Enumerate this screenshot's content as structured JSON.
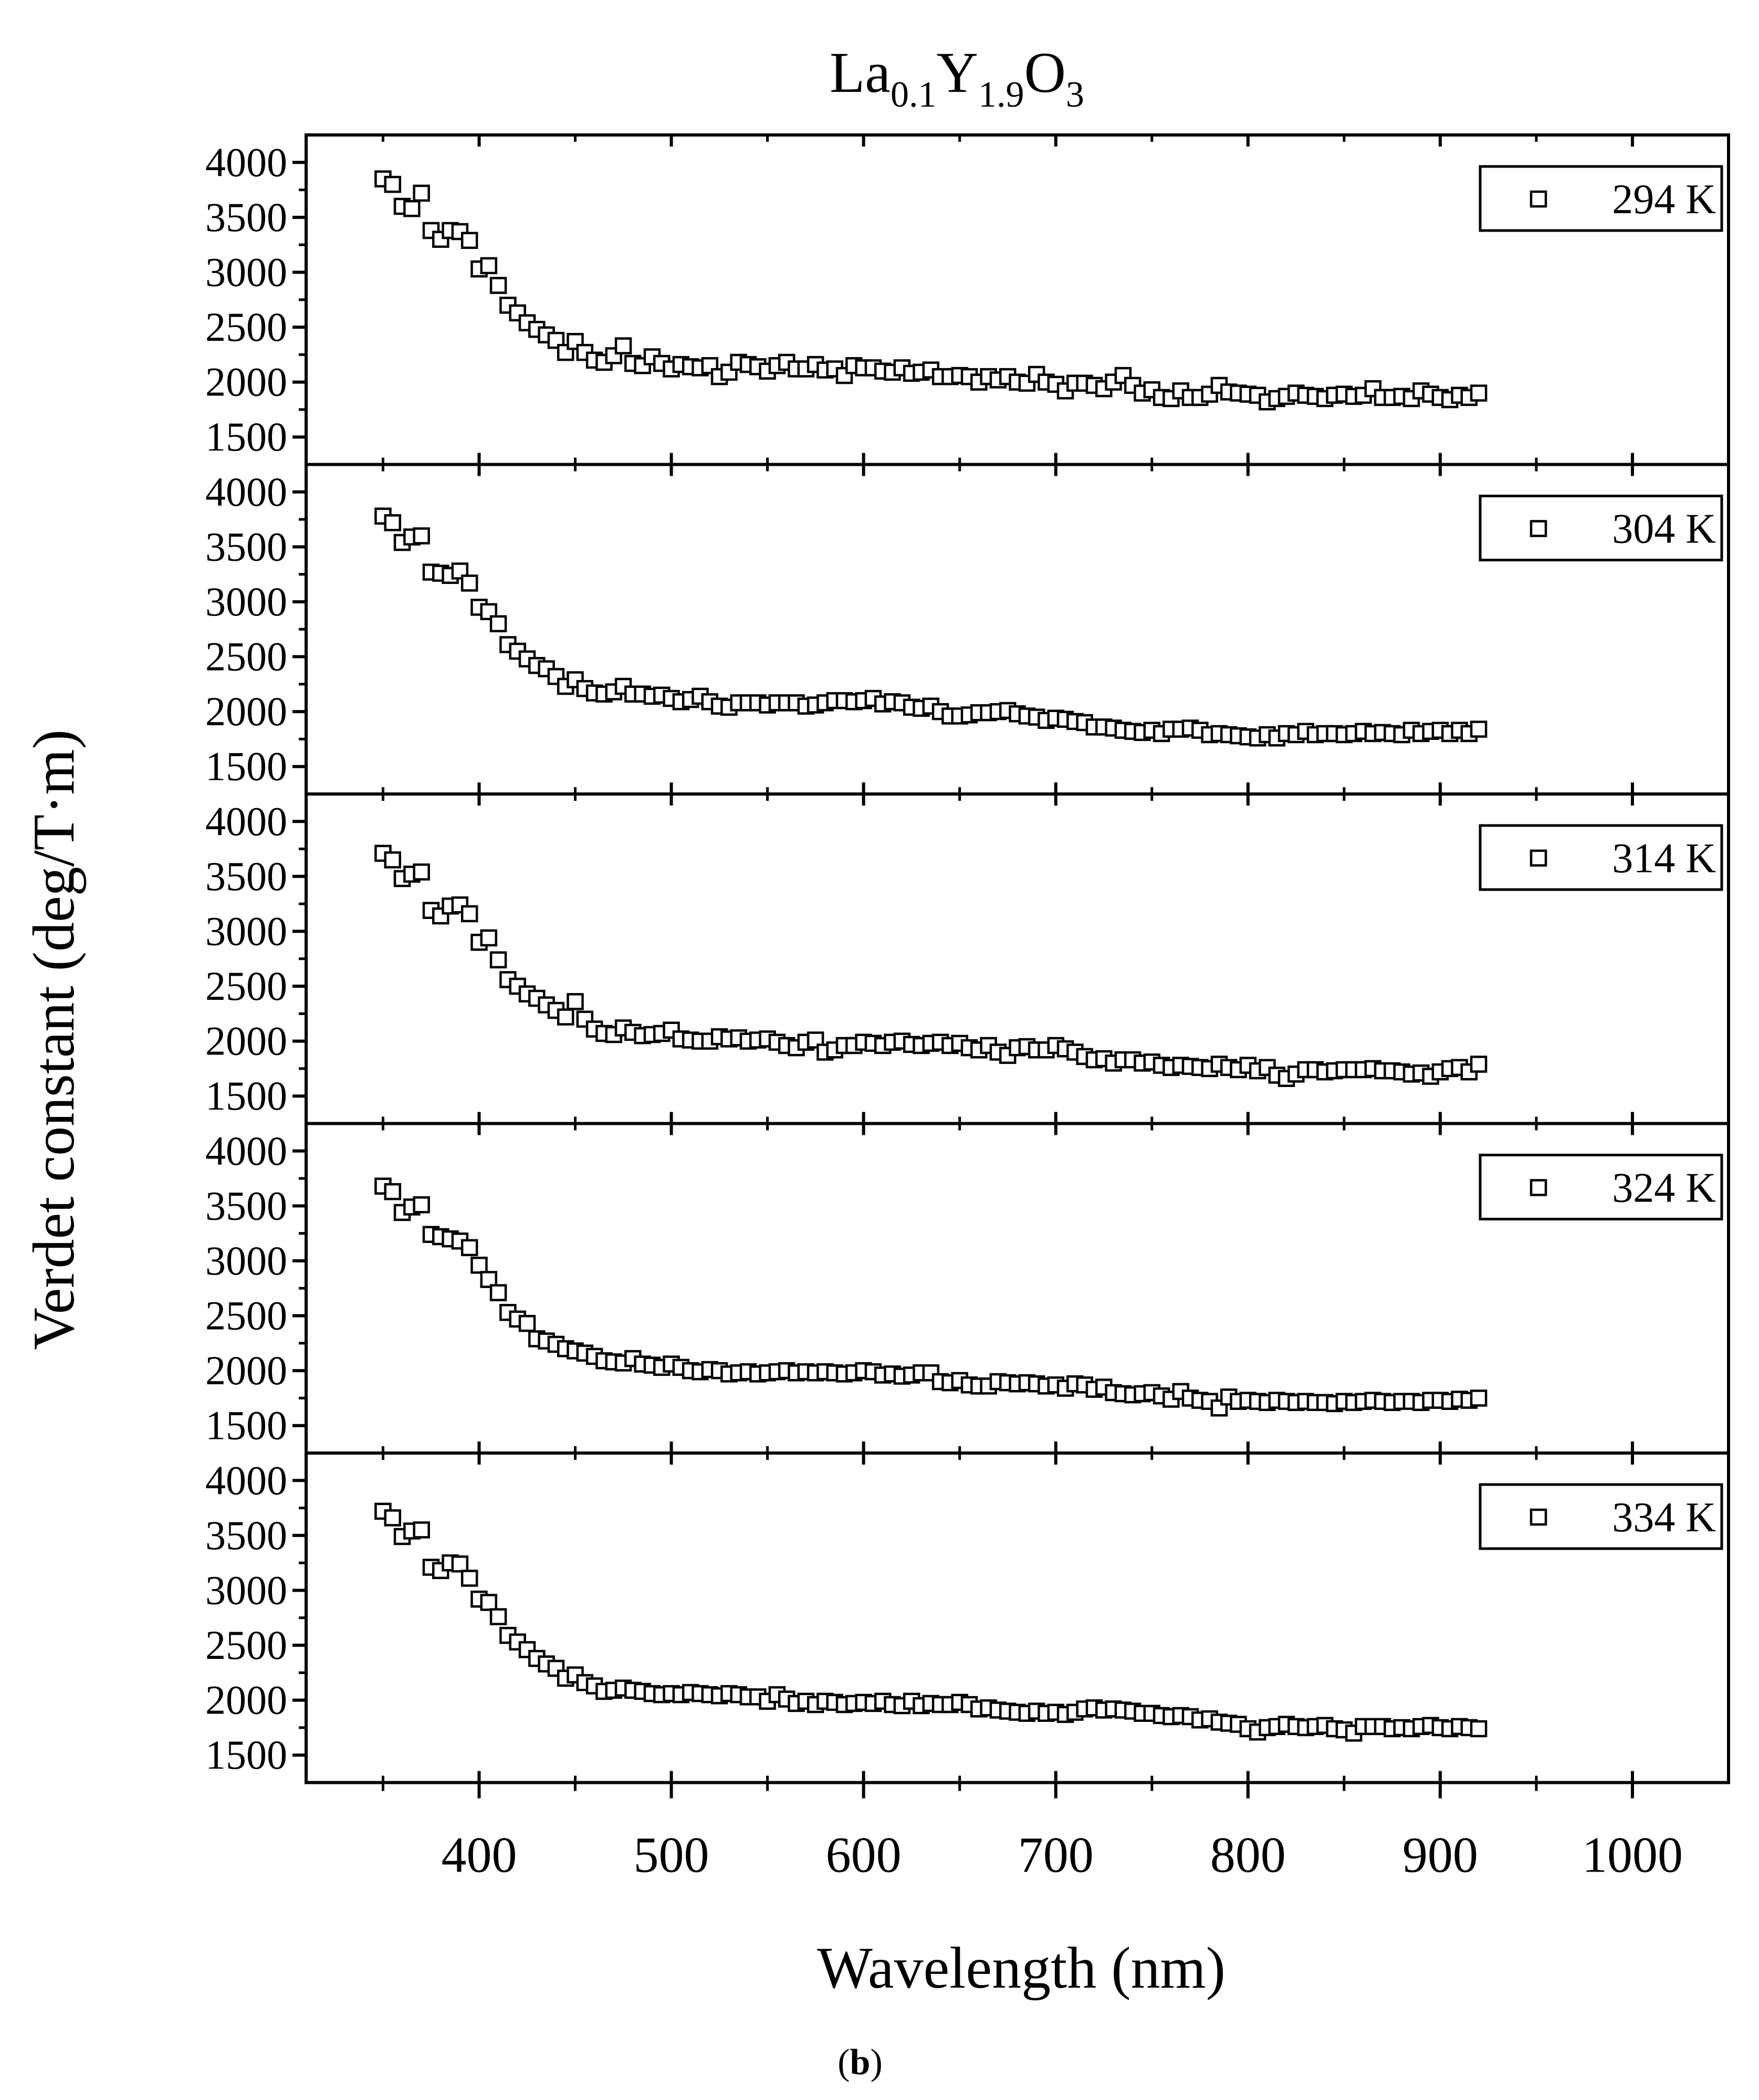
{
  "chart_data": {
    "type": "scatter",
    "title": {
      "main": "La",
      "sub1": "0.1",
      "mid": "Y",
      "sub2": "1.9",
      "tail": "O",
      "sub3": "3"
    },
    "title_text": "La0.1Y1.9O3",
    "xlabel": "Wavelength (nm)",
    "ylabel": "Verdet constant (deg/T·m)",
    "caption": {
      "open": "(",
      "letter": "b",
      "close": ")"
    },
    "xlim": [
      310,
      1050
    ],
    "ylim": [
      1250,
      4250
    ],
    "x_ticks": [
      400,
      500,
      600,
      700,
      800,
      900,
      1000
    ],
    "x_tick_labels": [
      "400",
      "500",
      "600",
      "700",
      "800",
      "900",
      "1000"
    ],
    "y_ticks": [
      1500,
      2000,
      2500,
      3000,
      3500,
      4000
    ],
    "y_tick_labels": [
      "1500",
      "2000",
      "2500",
      "3000",
      "3500",
      "4000"
    ],
    "marker": "open-square",
    "legend_position": "top-right",
    "x_start": 350,
    "x_step": 5,
    "series": [
      {
        "name": "294 K",
        "values": [
          3850,
          3800,
          3600,
          3580,
          3720,
          3380,
          3300,
          3380,
          3370,
          3290,
          3030,
          3060,
          2880,
          2700,
          2630,
          2540,
          2480,
          2430,
          2380,
          2270,
          2370,
          2270,
          2200,
          2180,
          2240,
          2330,
          2170,
          2150,
          2230,
          2170,
          2120,
          2160,
          2140,
          2130,
          2150,
          2050,
          2090,
          2180,
          2160,
          2140,
          2100,
          2150,
          2180,
          2120,
          2120,
          2160,
          2110,
          2120,
          2060,
          2150,
          2130,
          2130,
          2100,
          2090,
          2130,
          2080,
          2090,
          2110,
          2050,
          2050,
          2060,
          2050,
          2000,
          2050,
          2020,
          2050,
          2000,
          1990,
          2070,
          2000,
          1980,
          1920,
          1990,
          1990,
          1970,
          1940,
          2000,
          2060,
          1970,
          1900,
          1930,
          1860,
          1850,
          1920,
          1860,
          1860,
          1890,
          1970,
          1910,
          1900,
          1890,
          1880,
          1820,
          1850,
          1870,
          1900,
          1880,
          1870,
          1850,
          1880,
          1890,
          1870,
          1880,
          1940,
          1860,
          1860,
          1870,
          1850,
          1920,
          1890,
          1860,
          1840,
          1880,
          1860,
          1900
        ]
      },
      {
        "name": "304 K",
        "values": [
          3780,
          3720,
          3540,
          3590,
          3600,
          3270,
          3260,
          3240,
          3280,
          3170,
          2950,
          2910,
          2800,
          2610,
          2550,
          2480,
          2420,
          2390,
          2320,
          2230,
          2290,
          2210,
          2170,
          2160,
          2180,
          2230,
          2160,
          2160,
          2140,
          2150,
          2120,
          2090,
          2110,
          2140,
          2090,
          2050,
          2040,
          2080,
          2080,
          2080,
          2060,
          2080,
          2080,
          2080,
          2050,
          2060,
          2080,
          2100,
          2100,
          2090,
          2100,
          2120,
          2070,
          2090,
          2080,
          2040,
          2030,
          2050,
          2000,
          1960,
          1960,
          1970,
          1990,
          1990,
          2000,
          2010,
          1980,
          1960,
          1950,
          1920,
          1940,
          1930,
          1910,
          1900,
          1860,
          1860,
          1850,
          1830,
          1820,
          1810,
          1830,
          1800,
          1840,
          1840,
          1850,
          1830,
          1790,
          1800,
          1790,
          1780,
          1770,
          1760,
          1790,
          1760,
          1800,
          1790,
          1820,
          1790,
          1800,
          1800,
          1790,
          1800,
          1820,
          1800,
          1810,
          1800,
          1790,
          1830,
          1800,
          1820,
          1830,
          1800,
          1830,
          1800,
          1840
        ]
      },
      {
        "name": "314 K",
        "values": [
          3710,
          3650,
          3480,
          3520,
          3540,
          3190,
          3140,
          3230,
          3240,
          3160,
          2900,
          2940,
          2740,
          2560,
          2500,
          2430,
          2390,
          2330,
          2280,
          2220,
          2360,
          2200,
          2110,
          2070,
          2060,
          2120,
          2080,
          2050,
          2060,
          2070,
          2100,
          2020,
          2010,
          2000,
          2000,
          2040,
          2020,
          2030,
          2000,
          2010,
          2020,
          1990,
          1960,
          1940,
          1990,
          2010,
          1900,
          1920,
          1960,
          1960,
          1990,
          1980,
          1960,
          1990,
          2000,
          1970,
          1960,
          1980,
          1990,
          1960,
          1980,
          1940,
          1920,
          1960,
          1900,
          1870,
          1940,
          1950,
          1920,
          1920,
          1960,
          1930,
          1900,
          1860,
          1830,
          1840,
          1800,
          1830,
          1830,
          1800,
          1810,
          1780,
          1760,
          1780,
          1770,
          1760,
          1750,
          1790,
          1760,
          1740,
          1780,
          1730,
          1760,
          1690,
          1660,
          1700,
          1740,
          1740,
          1720,
          1730,
          1740,
          1740,
          1740,
          1750,
          1730,
          1730,
          1720,
          1700,
          1710,
          1680,
          1720,
          1750,
          1760,
          1720,
          1790
        ]
      },
      {
        "name": "324 K",
        "values": [
          3680,
          3630,
          3440,
          3490,
          3510,
          3240,
          3220,
          3200,
          3180,
          3120,
          2960,
          2830,
          2710,
          2530,
          2470,
          2430,
          2290,
          2270,
          2240,
          2200,
          2180,
          2160,
          2130,
          2090,
          2080,
          2070,
          2110,
          2060,
          2050,
          2030,
          2060,
          2030,
          2000,
          1990,
          2010,
          2000,
          1970,
          1980,
          1990,
          1970,
          1980,
          1990,
          2000,
          1980,
          1990,
          1980,
          1990,
          1980,
          1970,
          1980,
          2000,
          1990,
          1960,
          1970,
          1950,
          1960,
          1980,
          1980,
          1900,
          1890,
          1910,
          1870,
          1860,
          1860,
          1900,
          1890,
          1880,
          1890,
          1880,
          1860,
          1870,
          1840,
          1880,
          1870,
          1830,
          1850,
          1800,
          1790,
          1780,
          1790,
          1800,
          1770,
          1740,
          1810,
          1750,
          1730,
          1720,
          1660,
          1760,
          1720,
          1730,
          1720,
          1710,
          1730,
          1720,
          1710,
          1720,
          1710,
          1710,
          1700,
          1720,
          1710,
          1720,
          1730,
          1720,
          1710,
          1720,
          1720,
          1710,
          1730,
          1730,
          1720,
          1740,
          1730,
          1750
        ]
      },
      {
        "name": "334 K",
        "values": [
          3720,
          3660,
          3490,
          3540,
          3550,
          3210,
          3180,
          3250,
          3240,
          3110,
          2920,
          2890,
          2760,
          2590,
          2530,
          2460,
          2380,
          2330,
          2290,
          2200,
          2230,
          2160,
          2130,
          2080,
          2090,
          2110,
          2090,
          2080,
          2060,
          2050,
          2060,
          2050,
          2070,
          2060,
          2050,
          2040,
          2060,
          2050,
          2030,
          2030,
          1990,
          2050,
          2010,
          1970,
          1990,
          1960,
          1990,
          1980,
          1960,
          1970,
          1980,
          1970,
          1990,
          1960,
          1950,
          1990,
          1950,
          1970,
          1960,
          1960,
          1980,
          1960,
          1920,
          1930,
          1910,
          1900,
          1890,
          1880,
          1900,
          1880,
          1890,
          1870,
          1890,
          1920,
          1930,
          1910,
          1920,
          1910,
          1900,
          1880,
          1880,
          1860,
          1850,
          1860,
          1850,
          1820,
          1830,
          1800,
          1790,
          1780,
          1740,
          1710,
          1750,
          1760,
          1780,
          1760,
          1750,
          1760,
          1770,
          1740,
          1730,
          1700,
          1760,
          1760,
          1760,
          1740,
          1750,
          1740,
          1760,
          1770,
          1750,
          1740,
          1760,
          1750,
          1740
        ]
      }
    ]
  }
}
